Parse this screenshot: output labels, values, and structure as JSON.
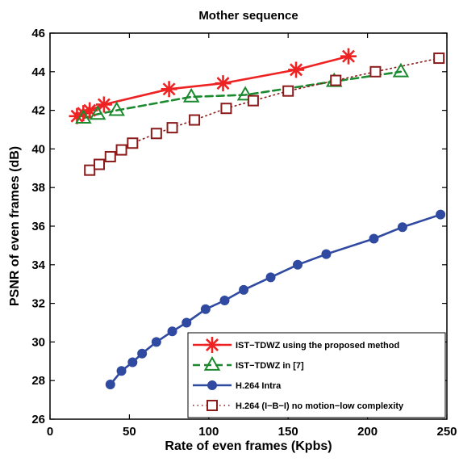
{
  "chart_data": {
    "type": "line",
    "title": "Mother sequence",
    "xlabel": "Rate of even frames (Kpbs)",
    "ylabel": "PSNR of even frames (dB)",
    "xlim": [
      0,
      250
    ],
    "ylim": [
      26,
      46
    ],
    "xticks": [
      0,
      50,
      100,
      150,
      200,
      250
    ],
    "yticks": [
      26,
      28,
      30,
      32,
      34,
      36,
      38,
      40,
      42,
      44,
      46
    ],
    "grid": false,
    "legend_position": "bottom-right",
    "series": [
      {
        "name": "IST−TDWZ using the proposed method",
        "color": "#ee2222",
        "line": "solid",
        "marker": "asterisk",
        "x": [
          17,
          21,
          25,
          34,
          75,
          109,
          155,
          188
        ],
        "y": [
          41.7,
          41.85,
          42.0,
          42.3,
          43.1,
          43.4,
          44.1,
          44.8
        ]
      },
      {
        "name": "IST−TDWZ in [7]",
        "color": "#1b8a2e",
        "line": "dashed",
        "marker": "triangle",
        "x": [
          21,
          30,
          42,
          89,
          123,
          179,
          221
        ],
        "y": [
          41.6,
          41.8,
          42.0,
          42.7,
          42.8,
          43.5,
          44.0
        ]
      },
      {
        "name": "H.264 Intra",
        "color": "#2f4aa0",
        "line": "solid",
        "marker": "circle",
        "x": [
          38,
          45,
          52,
          58,
          67,
          77,
          86,
          98,
          110,
          122,
          139,
          156,
          174,
          204,
          222,
          246
        ],
        "y": [
          27.8,
          28.5,
          28.95,
          29.4,
          30.0,
          30.55,
          31.0,
          31.7,
          32.15,
          32.7,
          33.35,
          34.0,
          34.55,
          35.35,
          35.95,
          36.6
        ]
      },
      {
        "name": "H.264 (I−B−I) no motion−low complexity",
        "color": "#8b1a1a",
        "line": "dotted",
        "marker": "square",
        "x": [
          25,
          31,
          38,
          45,
          52,
          67,
          77,
          91,
          111,
          128,
          150,
          180,
          205,
          245
        ],
        "y": [
          38.9,
          39.2,
          39.6,
          39.95,
          40.3,
          40.8,
          41.1,
          41.5,
          42.1,
          42.5,
          43.0,
          43.55,
          44.0,
          44.7
        ]
      }
    ]
  }
}
